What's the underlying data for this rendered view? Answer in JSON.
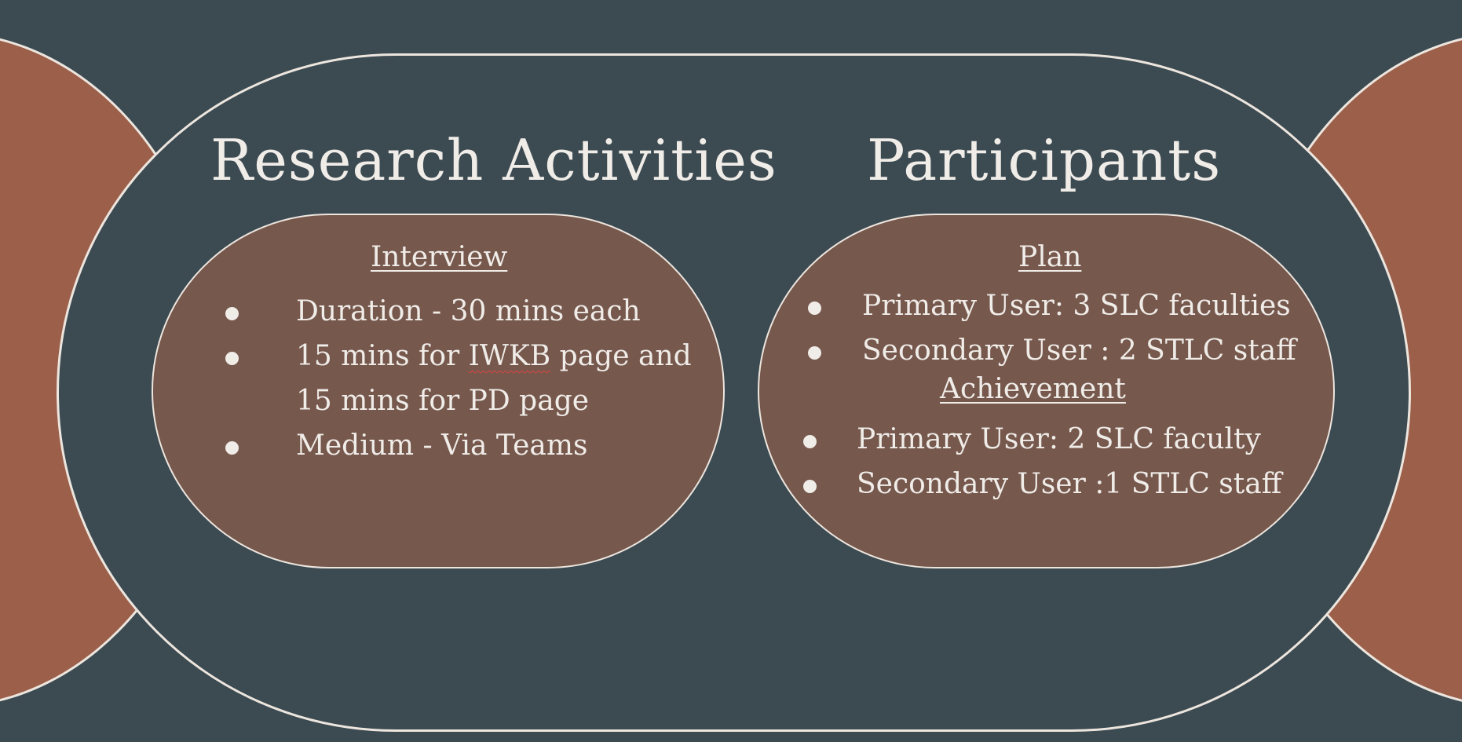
{
  "slide": {
    "colors": {
      "background": "#3c4a51",
      "side_shapes": "#9b5f4a",
      "inner_capsules": "#76584d",
      "outline": "#ede6df",
      "text": "#f0ece8"
    },
    "left_heading": "Research Activities",
    "right_heading": "Participants",
    "left_panel": {
      "subheading": "Interview",
      "items": [
        "Duration - 30 mins each",
        "15 mins for IWKB page and",
        "15 mins for PD page",
        "Medium - Via Teams"
      ]
    },
    "right_panel": {
      "plan": {
        "subheading": "Plan",
        "items": [
          "Primary User: 3 SLC faculties",
          "Secondary User : 2 STLC staff"
        ]
      },
      "achievement": {
        "subheading": "Achievement",
        "items": [
          "Primary User: 2  SLC faculty",
          "Secondary User :1 STLC staff"
        ]
      }
    }
  }
}
